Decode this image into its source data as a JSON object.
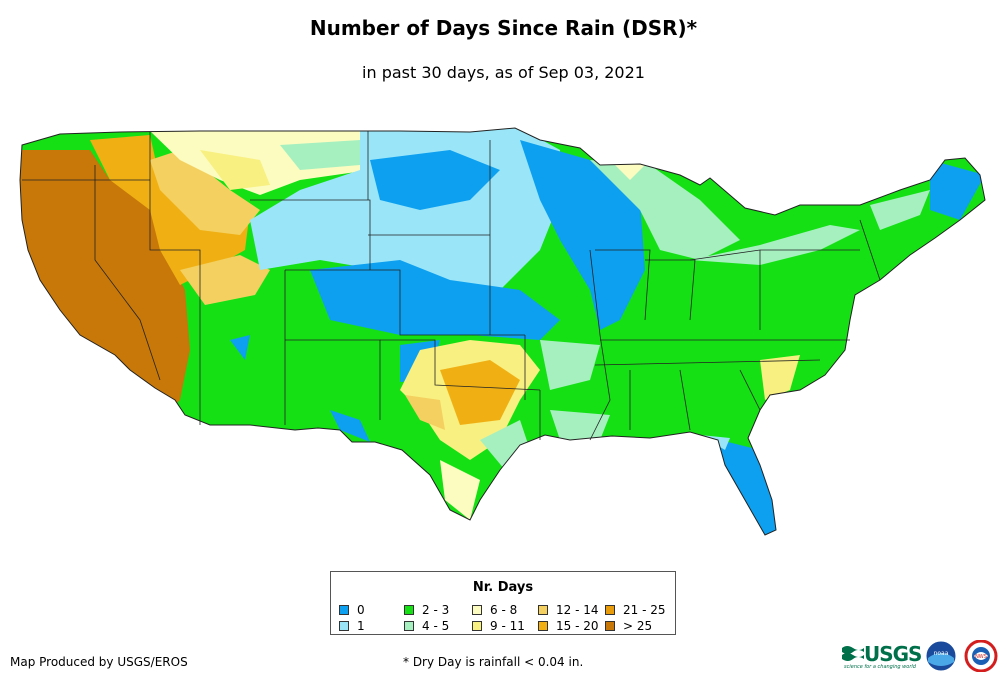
{
  "title": "Number of Days Since Rain (DSR)*",
  "subtitle": "in past 30 days, as of Sep 03, 2021",
  "legend": {
    "title": "Nr. Days",
    "items": [
      {
        "label": "0",
        "color": "#0ea0f0"
      },
      {
        "label": "1",
        "color": "#9ae6f8"
      },
      {
        "label": "2 - 3",
        "color": "#14e014"
      },
      {
        "label": "4 - 5",
        "color": "#a6f0c0"
      },
      {
        "label": "6 - 8",
        "color": "#fcfcc0"
      },
      {
        "label": "9 - 11",
        "color": "#f8f080"
      },
      {
        "label": "12 - 14",
        "color": "#f4d060"
      },
      {
        "label": "15 - 20",
        "color": "#f0b014"
      },
      {
        "label": "21 - 25",
        "color": "#e89c0c"
      },
      {
        "label": "> 25",
        "color": "#c87808"
      }
    ]
  },
  "credit": "Map Produced by USGS/EROS",
  "footnote": "* Dry Day is rainfall < 0.04 in.",
  "logos": {
    "usgs": "USGS",
    "usgs_tagline": "science for a changing world",
    "noaa": "noaa",
    "nws": "NWS"
  }
}
